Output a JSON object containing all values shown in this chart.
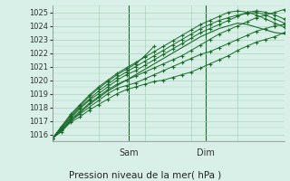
{
  "title": "Pression niveau de la mer( hPa )",
  "bg_color": "#d8f0e8",
  "grid_color": "#aad4bc",
  "line_color": "#1a6b2a",
  "ylim": [
    1015.5,
    1025.5
  ],
  "yticks": [
    1016,
    1017,
    1018,
    1019,
    1020,
    1021,
    1022,
    1023,
    1024,
    1025
  ],
  "day_lines": [
    0.33,
    0.66
  ],
  "day_labels": [
    "Sam",
    "Dim"
  ],
  "series": [
    {
      "x": [
        0.0,
        0.04,
        0.08,
        0.12,
        0.16,
        0.2,
        0.24,
        0.28,
        0.32,
        0.36,
        0.4,
        0.44,
        0.48,
        0.52,
        0.56,
        0.6,
        0.64,
        0.68,
        0.72,
        0.76,
        0.8,
        0.84,
        0.88,
        0.92,
        0.96,
        1.0
      ],
      "y": [
        1015.7,
        1016.2,
        1016.9,
        1017.3,
        1017.8,
        1018.2,
        1018.6,
        1019.0,
        1019.3,
        1019.5,
        1019.7,
        1019.9,
        1020.0,
        1020.2,
        1020.4,
        1020.6,
        1020.9,
        1021.2,
        1021.5,
        1021.8,
        1022.2,
        1022.5,
        1022.8,
        1023.0,
        1023.2,
        1023.5
      ],
      "marker": true
    },
    {
      "x": [
        0.0,
        0.04,
        0.08,
        0.12,
        0.16,
        0.2,
        0.24,
        0.28,
        0.32,
        0.36,
        0.4,
        0.44,
        0.48,
        0.52,
        0.56,
        0.6,
        0.64,
        0.68,
        0.72,
        0.76,
        0.8,
        0.84,
        0.88,
        0.92,
        0.96,
        1.0
      ],
      "y": [
        1015.7,
        1016.3,
        1017.0,
        1017.5,
        1018.0,
        1018.5,
        1019.0,
        1019.4,
        1019.6,
        1019.8,
        1020.1,
        1020.4,
        1020.7,
        1021.0,
        1021.3,
        1021.6,
        1021.9,
        1022.1,
        1022.4,
        1022.7,
        1023.0,
        1023.3,
        1023.6,
        1023.8,
        1024.0,
        1024.1
      ],
      "marker": true
    },
    {
      "x": [
        0.0,
        0.04,
        0.08,
        0.12,
        0.16,
        0.2,
        0.24,
        0.28,
        0.32,
        0.36,
        0.4,
        0.44,
        0.48,
        0.52,
        0.56,
        0.6,
        0.64,
        0.68,
        0.72,
        0.76,
        0.8,
        0.84,
        0.88,
        0.92,
        0.96,
        1.0
      ],
      "y": [
        1015.7,
        1016.4,
        1017.1,
        1017.7,
        1018.3,
        1018.8,
        1019.3,
        1019.7,
        1020.0,
        1020.3,
        1020.6,
        1020.9,
        1021.2,
        1021.5,
        1021.8,
        1022.2,
        1022.6,
        1023.0,
        1023.4,
        1023.7,
        1024.0,
        1024.3,
        1024.6,
        1024.8,
        1025.0,
        1025.2
      ],
      "marker": true
    },
    {
      "x": [
        0.0,
        0.04,
        0.08,
        0.12,
        0.16,
        0.2,
        0.24,
        0.28,
        0.32,
        0.36,
        0.4,
        0.44,
        0.48,
        0.52,
        0.56,
        0.6,
        0.64,
        0.68,
        0.72,
        0.76,
        0.8,
        0.84,
        0.88,
        0.92,
        0.96,
        1.0
      ],
      "y": [
        1015.7,
        1016.4,
        1017.2,
        1017.9,
        1018.5,
        1019.0,
        1019.5,
        1020.0,
        1020.4,
        1020.7,
        1021.1,
        1021.5,
        1021.9,
        1022.3,
        1022.7,
        1023.1,
        1023.5,
        1023.8,
        1024.1,
        1024.4,
        1024.7,
        1025.0,
        1025.1,
        1025.0,
        1024.8,
        1024.5
      ],
      "marker": true
    },
    {
      "x": [
        0.0,
        0.04,
        0.08,
        0.12,
        0.16,
        0.2,
        0.24,
        0.28,
        0.32,
        0.36,
        0.4,
        0.44
      ],
      "y": [
        1015.7,
        1016.5,
        1017.4,
        1018.1,
        1018.8,
        1019.4,
        1019.9,
        1020.4,
        1020.8,
        1021.2,
        1021.8,
        1022.5
      ],
      "marker": true
    },
    {
      "x": [
        0.0,
        0.04,
        0.08,
        0.12,
        0.16,
        0.2,
        0.24,
        0.28,
        0.32,
        0.36,
        0.4,
        0.44,
        0.48,
        0.52,
        0.56,
        0.6,
        0.64,
        0.68,
        0.72,
        0.76,
        0.8,
        0.84,
        0.88,
        0.92,
        0.96,
        1.0
      ],
      "y": [
        1015.7,
        1016.5,
        1017.3,
        1018.0,
        1018.6,
        1019.2,
        1019.7,
        1020.2,
        1020.6,
        1021.0,
        1021.4,
        1021.8,
        1022.2,
        1022.6,
        1023.0,
        1023.4,
        1023.8,
        1024.1,
        1024.4,
        1024.6,
        1024.8,
        1024.9,
        1025.0,
        1024.8,
        1024.5,
        1024.2
      ],
      "marker": true
    },
    {
      "x": [
        0.0,
        0.04,
        0.08,
        0.12,
        0.16,
        0.2,
        0.24,
        0.28,
        0.32,
        0.36,
        0.4,
        0.44,
        0.48,
        0.52,
        0.56,
        0.6,
        0.64,
        0.68,
        0.72,
        0.76,
        0.8,
        0.84,
        0.88,
        0.92,
        0.96,
        1.0
      ],
      "y": [
        1015.7,
        1016.6,
        1017.5,
        1018.2,
        1018.9,
        1019.5,
        1020.0,
        1020.5,
        1020.9,
        1021.3,
        1021.7,
        1022.1,
        1022.5,
        1022.9,
        1023.3,
        1023.7,
        1024.1,
        1024.4,
        1024.7,
        1025.0,
        1025.1,
        1025.0,
        1024.8,
        1024.5,
        1024.2,
        1023.9
      ],
      "marker": true
    },
    {
      "x": [
        0.0,
        0.04,
        0.08,
        0.12,
        0.16,
        0.2,
        0.24,
        0.28,
        0.32,
        0.36,
        0.4,
        0.44,
        0.48,
        0.52,
        0.56,
        0.6,
        0.64,
        0.68,
        0.72,
        0.76,
        0.8,
        0.84,
        0.88,
        0.92,
        0.96,
        1.0
      ],
      "y": [
        1015.7,
        1016.3,
        1017.0,
        1017.6,
        1018.2,
        1018.7,
        1019.2,
        1019.6,
        1020.0,
        1020.4,
        1020.8,
        1021.2,
        1021.6,
        1022.0,
        1022.4,
        1022.8,
        1023.2,
        1023.5,
        1023.8,
        1024.0,
        1024.2,
        1024.1,
        1023.9,
        1023.7,
        1023.5,
        1023.4
      ],
      "marker": false
    }
  ]
}
